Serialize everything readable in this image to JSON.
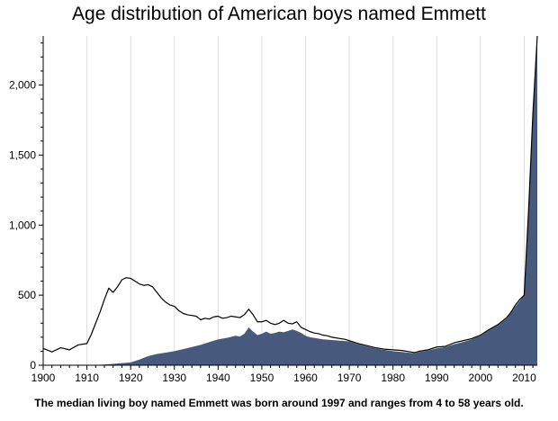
{
  "chart_data": {
    "type": "area",
    "title": "Age distribution of American boys named Emmett",
    "caption": "The median living boy named Emmett was born around 1997 and ranges from 4 to 58 years old.",
    "xlabel": "",
    "ylabel": "",
    "xlim": [
      1900,
      2013
    ],
    "ylim": [
      0,
      2350
    ],
    "x_ticks": [
      1900,
      1910,
      1920,
      1930,
      1940,
      1950,
      1960,
      1970,
      1980,
      1990,
      2000,
      2010
    ],
    "x_tick_labels": [
      "1900",
      "1910",
      "1920",
      "1930",
      "1940",
      "1950",
      "1960",
      "1970",
      "1980",
      "1990",
      "2000",
      "2010"
    ],
    "y_ticks": [
      0,
      500,
      1000,
      1500,
      2000
    ],
    "y_tick_labels": [
      "0",
      "500",
      "1,000",
      "1,500",
      "2,000"
    ],
    "grid": "vertical",
    "colors": {
      "area": "#475a7d",
      "line": "#000000",
      "grid": "#dddddd"
    },
    "series": [
      {
        "kind": "line",
        "x": [
          1900,
          1902,
          1904,
          1906,
          1908,
          1910,
          1911,
          1912,
          1913,
          1914,
          1915,
          1916,
          1917,
          1918,
          1919,
          1920,
          1921,
          1922,
          1923,
          1924,
          1925,
          1926,
          1927,
          1928,
          1929,
          1930,
          1931,
          1932,
          1933,
          1934,
          1935,
          1936,
          1937,
          1938,
          1939,
          1940,
          1941,
          1942,
          1943,
          1944,
          1945,
          1946,
          1947,
          1948,
          1949,
          1950,
          1951,
          1952,
          1953,
          1954,
          1955,
          1956,
          1957,
          1958,
          1959,
          1960,
          1961,
          1962,
          1963,
          1964,
          1965,
          1966,
          1967,
          1968,
          1969,
          1970,
          1972,
          1974,
          1976,
          1978,
          1980,
          1982,
          1984,
          1985,
          1986,
          1988,
          1990,
          1992,
          1994,
          1996,
          1998,
          2000,
          2002,
          2004,
          2006,
          2007,
          2008,
          2009,
          2010,
          2011,
          2012,
          2013
        ],
        "y": [
          120,
          95,
          125,
          110,
          145,
          155,
          220,
          300,
          380,
          470,
          550,
          520,
          560,
          610,
          625,
          620,
          600,
          580,
          570,
          575,
          560,
          520,
          480,
          450,
          430,
          420,
          390,
          370,
          360,
          355,
          350,
          325,
          335,
          330,
          345,
          350,
          335,
          340,
          350,
          345,
          340,
          360,
          400,
          360,
          310,
          310,
          320,
          300,
          290,
          300,
          320,
          300,
          295,
          310,
          270,
          255,
          240,
          230,
          225,
          215,
          210,
          200,
          195,
          190,
          185,
          175,
          155,
          140,
          125,
          115,
          110,
          105,
          95,
          90,
          100,
          110,
          130,
          135,
          160,
          175,
          190,
          215,
          255,
          290,
          340,
          380,
          430,
          470,
          500,
          1100,
          1800,
          2350
        ]
      },
      {
        "kind": "area",
        "x": [
          1900,
          1910,
          1914,
          1916,
          1918,
          1920,
          1922,
          1924,
          1926,
          1928,
          1930,
          1932,
          1934,
          1936,
          1938,
          1940,
          1942,
          1944,
          1945,
          1946,
          1947,
          1948,
          1949,
          1950,
          1951,
          1952,
          1953,
          1954,
          1955,
          1956,
          1957,
          1958,
          1959,
          1960,
          1961,
          1962,
          1964,
          1966,
          1968,
          1970,
          1972,
          1974,
          1976,
          1978,
          1980,
          1982,
          1984,
          1985,
          1986,
          1988,
          1990,
          1992,
          1994,
          1996,
          1998,
          2000,
          2002,
          2004,
          2006,
          2007,
          2008,
          2009,
          2010,
          2011,
          2012,
          2013
        ],
        "y": [
          0,
          0,
          5,
          10,
          15,
          20,
          40,
          65,
          80,
          90,
          100,
          115,
          130,
          145,
          165,
          185,
          195,
          210,
          205,
          225,
          270,
          240,
          215,
          225,
          240,
          225,
          230,
          240,
          235,
          245,
          255,
          245,
          230,
          210,
          200,
          195,
          185,
          180,
          175,
          170,
          150,
          135,
          120,
          110,
          100,
          95,
          88,
          85,
          95,
          105,
          120,
          130,
          150,
          165,
          185,
          210,
          250,
          285,
          335,
          375,
          420,
          460,
          500,
          1100,
          1800,
          2350
        ]
      }
    ]
  }
}
